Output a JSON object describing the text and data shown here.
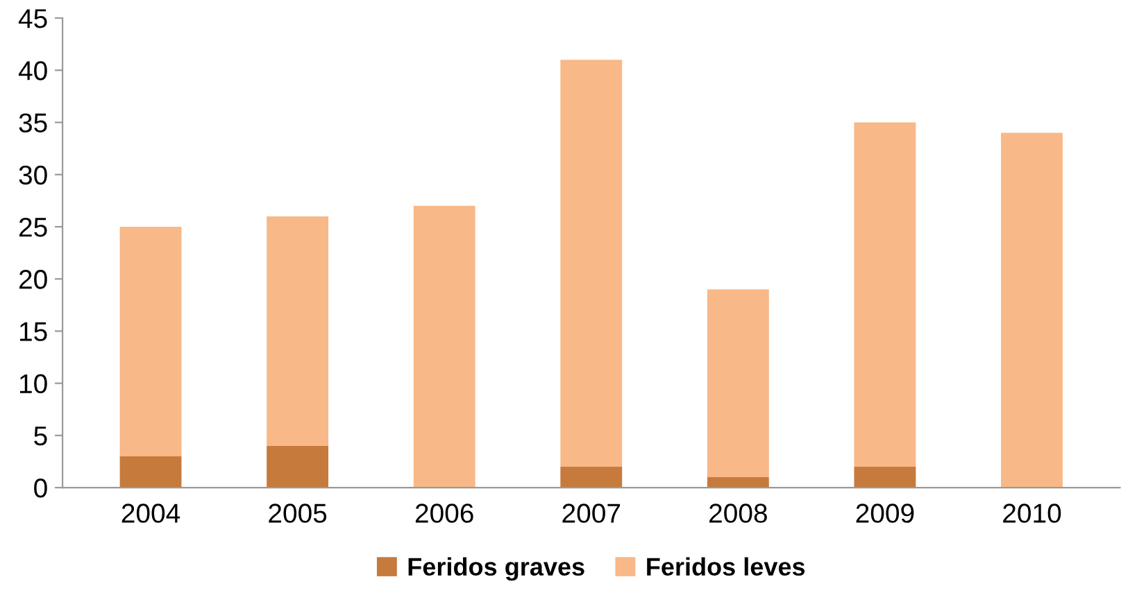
{
  "chart_data": {
    "type": "bar",
    "stacked": true,
    "categories": [
      "2004",
      "2005",
      "2006",
      "2007",
      "2008",
      "2009",
      "2010"
    ],
    "series": [
      {
        "name": "Feridos graves",
        "color": "#c67a3c",
        "values": [
          3,
          4,
          0,
          2,
          1,
          2,
          0
        ]
      },
      {
        "name": "Feridos leves",
        "color": "#f8b887",
        "values": [
          22,
          22,
          27,
          39,
          18,
          33,
          34
        ]
      }
    ],
    "ylim": [
      0,
      45
    ],
    "yticks": [
      0,
      5,
      10,
      15,
      20,
      25,
      30,
      35,
      40,
      45
    ],
    "grid": false,
    "legend": "bottom"
  }
}
